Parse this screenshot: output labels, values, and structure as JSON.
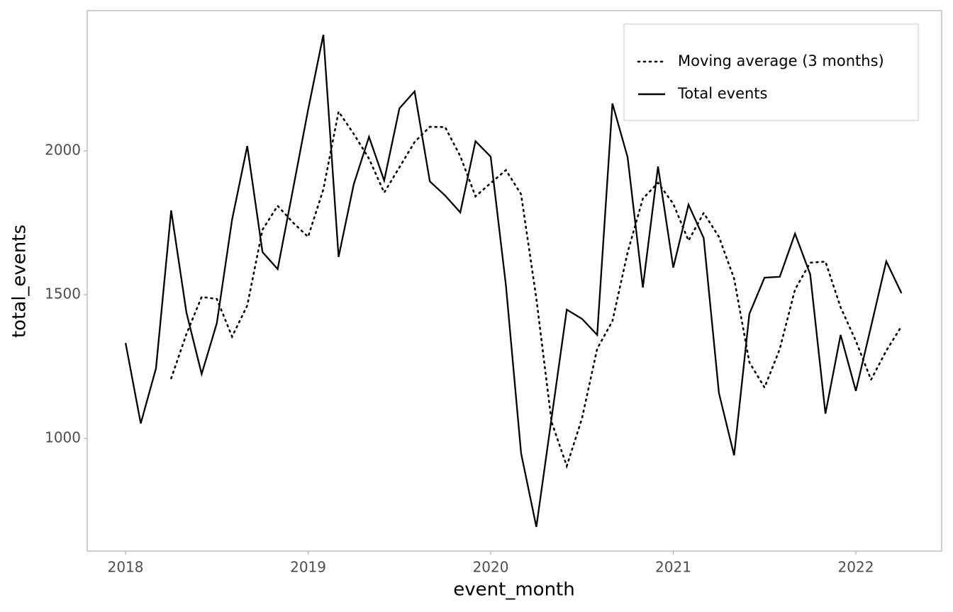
{
  "chart_data": {
    "type": "line",
    "xlabel": "event_month",
    "ylabel": "total_events",
    "x": [
      "2018-01",
      "2018-02",
      "2018-03",
      "2018-04",
      "2018-05",
      "2018-06",
      "2018-07",
      "2018-08",
      "2018-09",
      "2018-10",
      "2018-11",
      "2018-12",
      "2019-01",
      "2019-02",
      "2019-03",
      "2019-04",
      "2019-05",
      "2019-06",
      "2019-07",
      "2019-08",
      "2019-09",
      "2019-10",
      "2019-11",
      "2019-12",
      "2020-01",
      "2020-02",
      "2020-03",
      "2020-04",
      "2020-05",
      "2020-06",
      "2020-07",
      "2020-08",
      "2020-09",
      "2020-10",
      "2020-11",
      "2020-12",
      "2021-01",
      "2021-02",
      "2021-03",
      "2021-04",
      "2021-05",
      "2021-06",
      "2021-07",
      "2021-08",
      "2021-09",
      "2021-10",
      "2021-11",
      "2021-12",
      "2022-01",
      "2022-02",
      "2022-03",
      "2022-04"
    ],
    "series": [
      {
        "name": "Moving average (3 months)",
        "color": "#000000",
        "dash": "dotted",
        "values": [
          null,
          null,
          null,
          1209,
          1363,
          1492,
          1485,
          1354,
          1462,
          1726,
          1809,
          1751,
          1701,
          1866,
          2137,
          2059,
          1973,
          1855,
          1943,
          2031,
          2084,
          2083,
          1982,
          1842,
          1888,
          1933,
          1849,
          1487,
          1057,
          904,
          1070,
          1312,
          1408,
          1647,
          1834,
          1889,
          1816,
          1688,
          1784,
          1701,
          1556,
          1265,
          1177,
          1311,
          1518,
          1611,
          1615,
          1456,
          1339,
          1204,
          1305,
          1390
        ]
      },
      {
        "name": "Total events",
        "color": "#000000",
        "dash": "solid",
        "values": [
          1332,
          1052,
          1244,
          1793,
          1438,
          1224,
          1401,
          1761,
          2017,
          1648,
          1589,
          1865,
          2143,
          2404,
          1631,
          1884,
          2049,
          1897,
          2148,
          2207,
          1894,
          1845,
          1786,
          2034,
          1980,
          1532,
          948,
          692,
          1071,
          1448,
          1416,
          1360,
          2165,
          1978,
          1525,
          1946,
          1594,
          1813,
          1697,
          1158,
          941,
          1433,
          1559,
          1562,
          1712,
          1571,
          1086,
          1360,
          1165,
          1389,
          1616,
          1505
        ]
      }
    ],
    "xlim": [
      2017.79,
      2022.47
    ],
    "xticks": [
      2018,
      2019,
      2020,
      2021,
      2022
    ],
    "ylim": [
      608,
      2488
    ],
    "yticks": [
      1000,
      1500,
      2000
    ],
    "grid": false,
    "legend": "top-right"
  }
}
